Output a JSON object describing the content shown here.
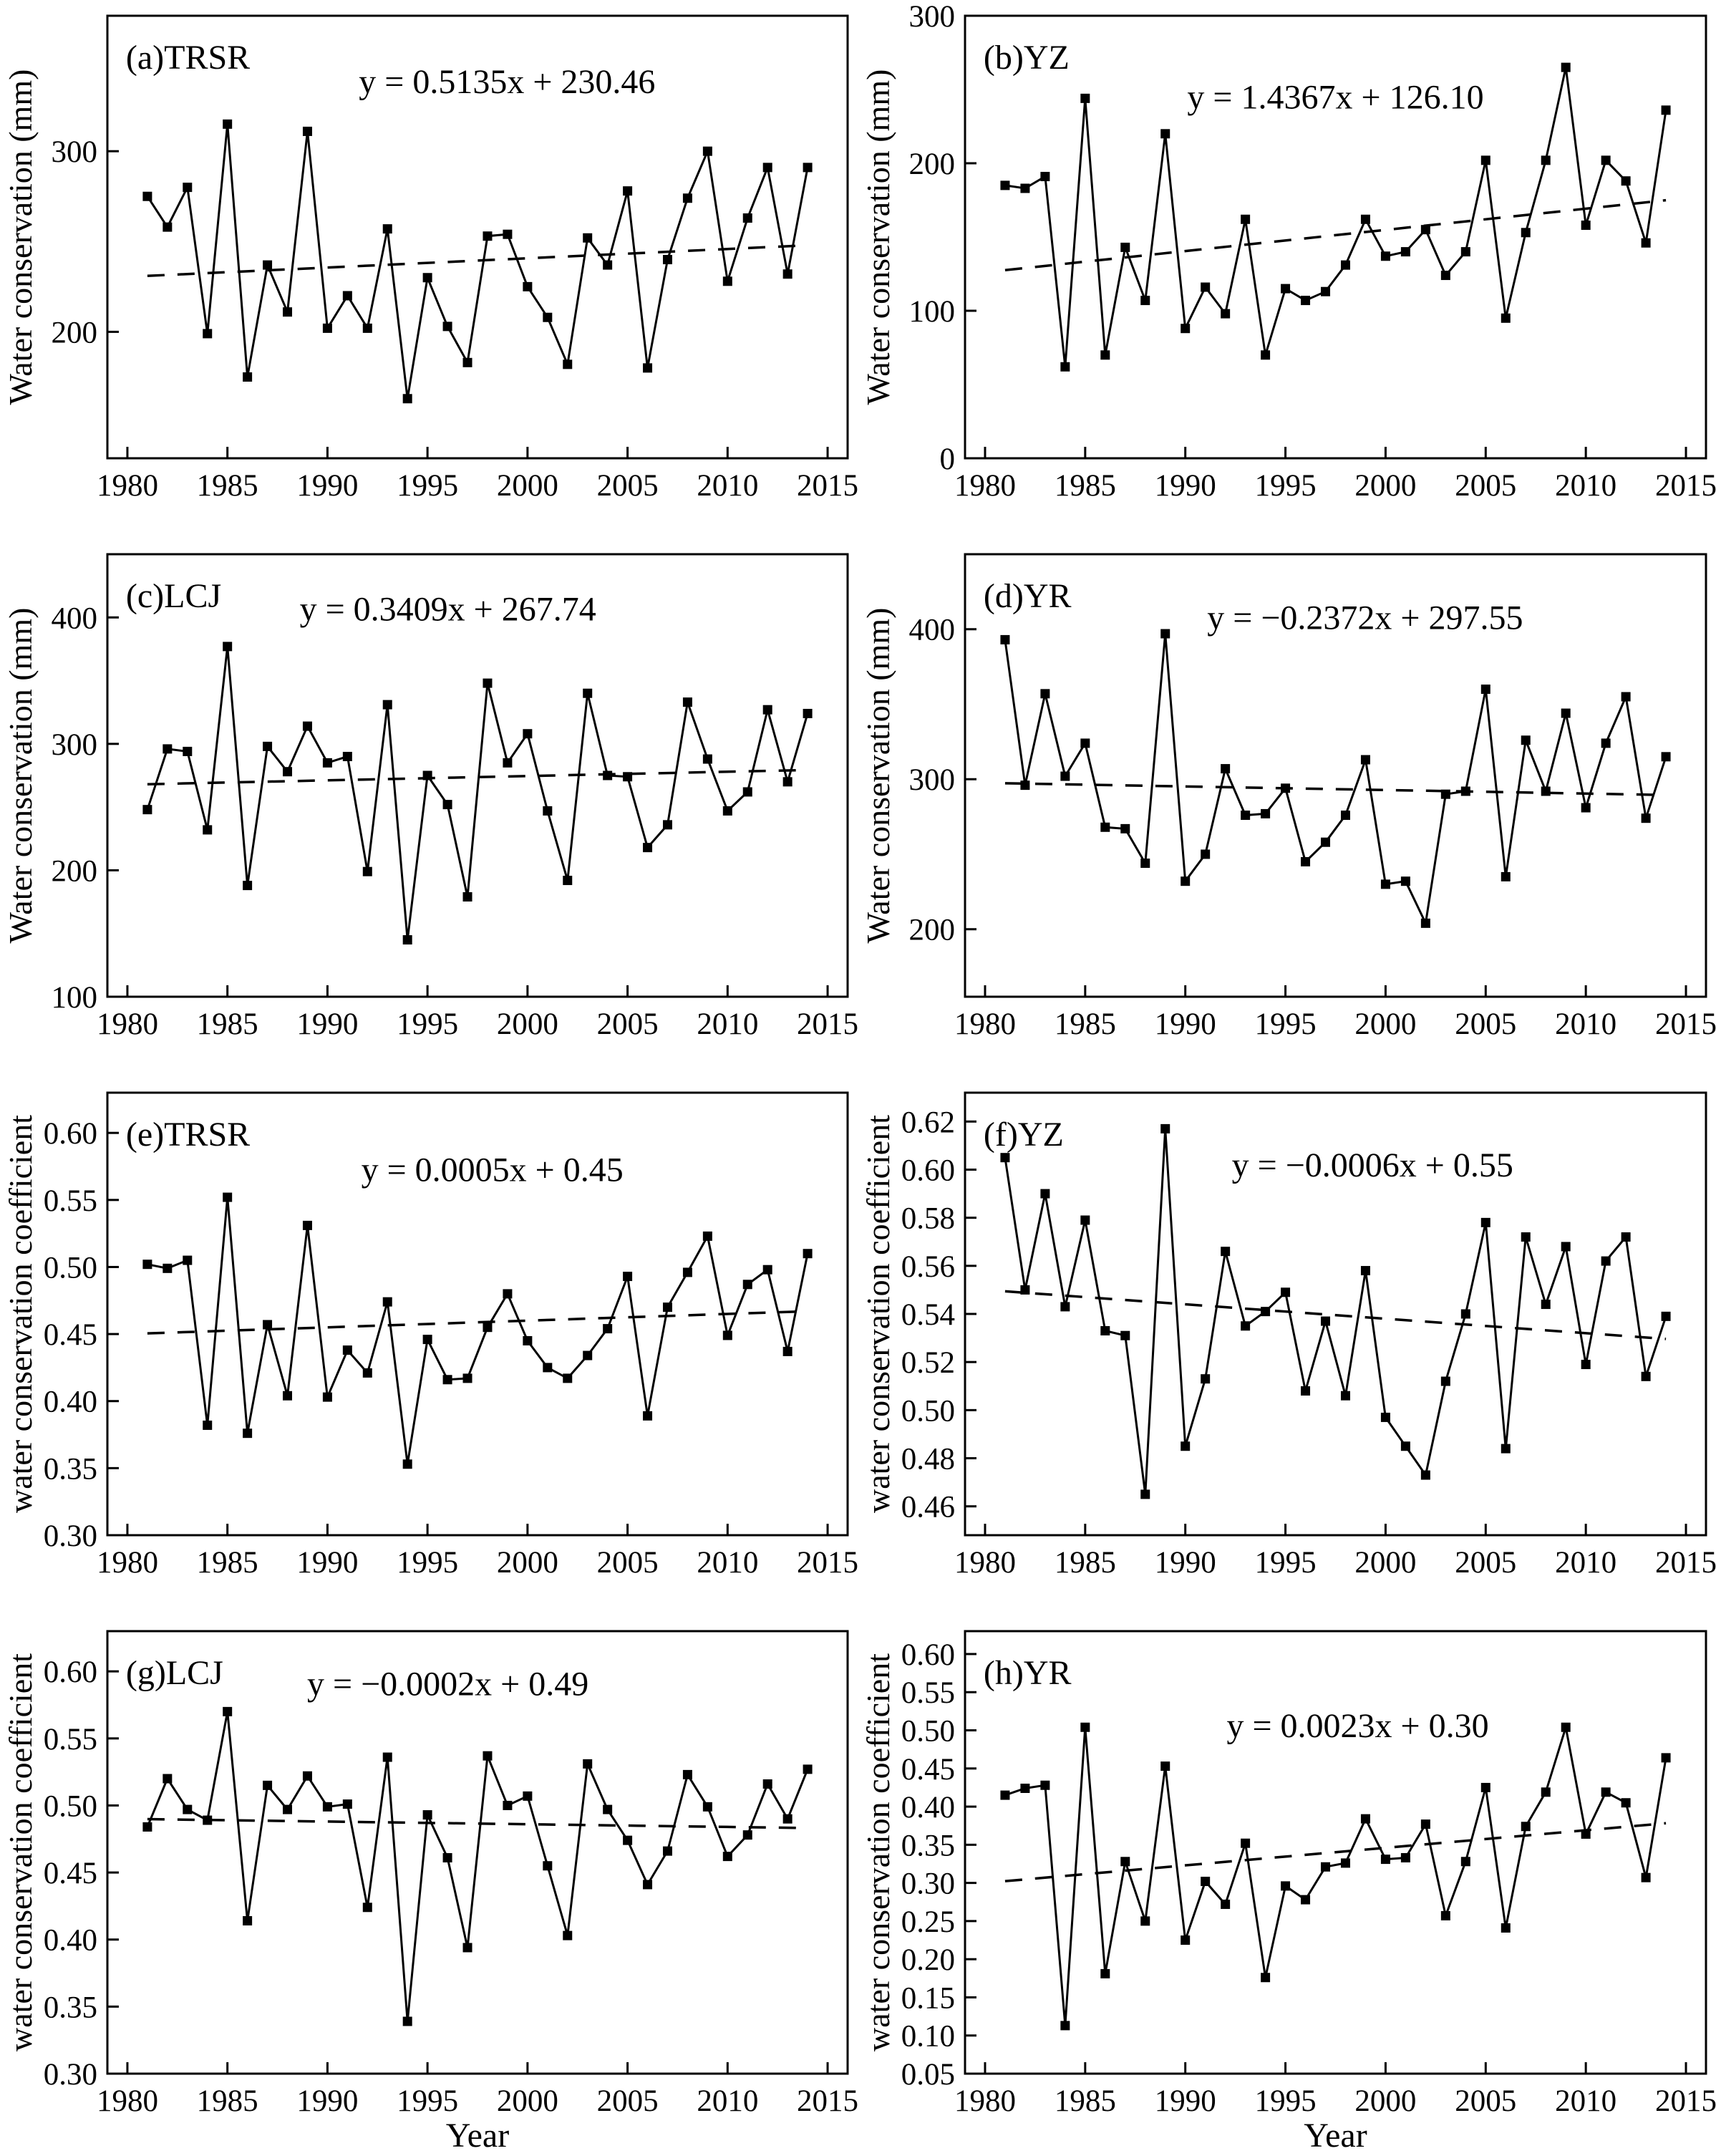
{
  "figure": {
    "xlabel": "Year",
    "background_color": "#ffffff",
    "line_color": "#000000",
    "marker": "filled-square",
    "trend_style": "dashed",
    "grid": "off",
    "legend": "none"
  },
  "chart_data": [
    {
      "type": "line",
      "panel_label": "(a)TRSR",
      "region": "TRSR",
      "ylabel": "Water conservation (mm)",
      "xlabel": "",
      "equation": "y = 0.5135x + 230.46",
      "trend": {
        "slope": 0.5135,
        "intercept": 230.46
      },
      "eq_pos": [
        0.54,
        0.1
      ],
      "xlim": [
        1979,
        2016
      ],
      "ylim": [
        130,
        375
      ],
      "xticks": [
        "1980",
        "1985",
        "1990",
        "1995",
        "2000",
        "2005",
        "2010",
        "2015"
      ],
      "yticks": [
        "200",
        "300"
      ],
      "x": [
        1981,
        1982,
        1983,
        1984,
        1985,
        1986,
        1987,
        1988,
        1989,
        1990,
        1991,
        1992,
        1993,
        1994,
        1995,
        1996,
        1997,
        1998,
        1999,
        2000,
        2001,
        2002,
        2003,
        2004,
        2005,
        2006,
        2007,
        2008,
        2009,
        2010,
        2011,
        2012,
        2013,
        2014
      ],
      "values": [
        275,
        258,
        280,
        199,
        315,
        175,
        237,
        211,
        311,
        202,
        220,
        202,
        257,
        163,
        230,
        203,
        183,
        253,
        254,
        225,
        208,
        182,
        252,
        237,
        278,
        180,
        240,
        274,
        300,
        228,
        263,
        291,
        232,
        291
      ]
    },
    {
      "type": "line",
      "panel_label": "(b)YZ",
      "region": "YZ",
      "ylabel": "Water conservation (mm)",
      "xlabel": "",
      "equation": "y = 1.4367x + 126.10",
      "trend": {
        "slope": 1.4367,
        "intercept": 126.1
      },
      "eq_pos": [
        0.5,
        0.135
      ],
      "xlim": [
        1979,
        2016
      ],
      "ylim": [
        0,
        300
      ],
      "xticks": [
        "1980",
        "1985",
        "1990",
        "1995",
        "2000",
        "2005",
        "2010",
        "2015"
      ],
      "yticks": [
        "0",
        "100",
        "200",
        "300"
      ],
      "x": [
        1981,
        1982,
        1983,
        1984,
        1985,
        1986,
        1987,
        1988,
        1989,
        1990,
        1991,
        1992,
        1993,
        1994,
        1995,
        1996,
        1997,
        1998,
        1999,
        2000,
        2001,
        2002,
        2003,
        2004,
        2005,
        2006,
        2007,
        2008,
        2009,
        2010,
        2011,
        2012,
        2013,
        2014
      ],
      "values": [
        185,
        183,
        191,
        62,
        244,
        70,
        143,
        107,
        220,
        88,
        116,
        98,
        162,
        70,
        115,
        107,
        113,
        131,
        162,
        137,
        140,
        155,
        124,
        140,
        202,
        95,
        153,
        202,
        265,
        158,
        202,
        188,
        146,
        236
      ]
    },
    {
      "type": "line",
      "panel_label": "(c)LCJ",
      "region": "LCJ",
      "ylabel": "Water conservation (mm)",
      "xlabel": "",
      "equation": "y = 0.3409x + 267.74",
      "trend": {
        "slope": 0.3409,
        "intercept": 267.74
      },
      "eq_pos": [
        0.46,
        0.075
      ],
      "xlim": [
        1979,
        2016
      ],
      "ylim": [
        100,
        450
      ],
      "xticks": [
        "1980",
        "1985",
        "1990",
        "1995",
        "2000",
        "2005",
        "2010",
        "2015"
      ],
      "yticks": [
        "100",
        "200",
        "300",
        "400"
      ],
      "x": [
        1981,
        1982,
        1983,
        1984,
        1985,
        1986,
        1987,
        1988,
        1989,
        1990,
        1991,
        1992,
        1993,
        1994,
        1995,
        1996,
        1997,
        1998,
        1999,
        2000,
        2001,
        2002,
        2003,
        2004,
        2005,
        2006,
        2007,
        2008,
        2009,
        2010,
        2011,
        2012,
        2013,
        2014
      ],
      "values": [
        248,
        296,
        294,
        232,
        377,
        188,
        298,
        278,
        314,
        285,
        290,
        199,
        331,
        145,
        275,
        252,
        179,
        348,
        285,
        308,
        247,
        192,
        340,
        275,
        274,
        218,
        236,
        333,
        288,
        247,
        262,
        327,
        270,
        324
      ]
    },
    {
      "type": "line",
      "panel_label": "(d)YR",
      "region": "YR",
      "ylabel": "Water conservation (mm)",
      "xlabel": "",
      "equation": "y = −0.2372x + 297.55",
      "trend": {
        "slope": -0.2372,
        "intercept": 297.55
      },
      "eq_pos": [
        0.54,
        0.095
      ],
      "xlim": [
        1979,
        2016
      ],
      "ylim": [
        155,
        450
      ],
      "xticks": [
        "1980",
        "1985",
        "1990",
        "1995",
        "2000",
        "2005",
        "2010",
        "2015"
      ],
      "yticks": [
        "200",
        "300",
        "400"
      ],
      "x": [
        1981,
        1982,
        1983,
        1984,
        1985,
        1986,
        1987,
        1988,
        1989,
        1990,
        1991,
        1992,
        1993,
        1994,
        1995,
        1996,
        1997,
        1998,
        1999,
        2000,
        2001,
        2002,
        2003,
        2004,
        2005,
        2006,
        2007,
        2008,
        2009,
        2010,
        2011,
        2012,
        2013,
        2014
      ],
      "values": [
        393,
        296,
        357,
        302,
        324,
        268,
        267,
        244,
        397,
        232,
        250,
        307,
        276,
        277,
        294,
        245,
        258,
        276,
        313,
        230,
        232,
        204,
        290,
        292,
        360,
        235,
        326,
        292,
        344,
        281,
        324,
        355,
        274,
        315
      ]
    },
    {
      "type": "line",
      "panel_label": "(e)TRSR",
      "region": "TRSR",
      "ylabel": "water conservation coefficient",
      "xlabel": "",
      "equation": "y = 0.0005x + 0.45",
      "trend": {
        "slope": 0.0005,
        "intercept": 0.45
      },
      "eq_pos": [
        0.52,
        0.125
      ],
      "xlim": [
        1979,
        2016
      ],
      "ylim": [
        0.3,
        0.63
      ],
      "xticks": [
        "1980",
        "1985",
        "1990",
        "1995",
        "2000",
        "2005",
        "2010",
        "2015"
      ],
      "yticks": [
        "0.30",
        "0.35",
        "0.40",
        "0.45",
        "0.50",
        "0.55",
        "0.60"
      ],
      "x": [
        1981,
        1982,
        1983,
        1984,
        1985,
        1986,
        1987,
        1988,
        1989,
        1990,
        1991,
        1992,
        1993,
        1994,
        1995,
        1996,
        1997,
        1998,
        1999,
        2000,
        2001,
        2002,
        2003,
        2004,
        2005,
        2006,
        2007,
        2008,
        2009,
        2010,
        2011,
        2012,
        2013,
        2014
      ],
      "values": [
        0.502,
        0.499,
        0.505,
        0.382,
        0.552,
        0.376,
        0.457,
        0.404,
        0.531,
        0.403,
        0.438,
        0.421,
        0.474,
        0.353,
        0.446,
        0.416,
        0.417,
        0.455,
        0.48,
        0.445,
        0.425,
        0.417,
        0.434,
        0.454,
        0.493,
        0.389,
        0.47,
        0.496,
        0.523,
        0.449,
        0.487,
        0.498,
        0.437,
        0.51
      ]
    },
    {
      "type": "line",
      "panel_label": "(f)YZ",
      "region": "YZ",
      "ylabel": "water conservation coefficient",
      "xlabel": "",
      "equation": "y = −0.0006x + 0.55",
      "trend": {
        "slope": -0.0006,
        "intercept": 0.55
      },
      "eq_pos": [
        0.55,
        0.115
      ],
      "xlim": [
        1979,
        2016
      ],
      "ylim": [
        0.448,
        0.632
      ],
      "xticks": [
        "1980",
        "1985",
        "1990",
        "1995",
        "2000",
        "2005",
        "2010",
        "2015"
      ],
      "yticks": [
        "0.46",
        "0.48",
        "0.50",
        "0.52",
        "0.54",
        "0.56",
        "0.58",
        "0.60",
        "0.62"
      ],
      "x": [
        1981,
        1982,
        1983,
        1984,
        1985,
        1986,
        1987,
        1988,
        1989,
        1990,
        1991,
        1992,
        1993,
        1994,
        1995,
        1996,
        1997,
        1998,
        1999,
        2000,
        2001,
        2002,
        2003,
        2004,
        2005,
        2006,
        2007,
        2008,
        2009,
        2010,
        2011,
        2012,
        2013,
        2014
      ],
      "values": [
        0.605,
        0.55,
        0.59,
        0.543,
        0.579,
        0.533,
        0.531,
        0.465,
        0.617,
        0.485,
        0.513,
        0.566,
        0.535,
        0.541,
        0.549,
        0.508,
        0.537,
        0.506,
        0.558,
        0.497,
        0.485,
        0.473,
        0.512,
        0.54,
        0.578,
        0.484,
        0.572,
        0.544,
        0.568,
        0.519,
        0.562,
        0.572,
        0.514,
        0.539
      ]
    },
    {
      "type": "line",
      "panel_label": "(g)LCJ",
      "region": "LCJ",
      "ylabel": "water conservation coefficient",
      "xlabel": "Year",
      "equation": "y = −0.0002x + 0.49",
      "trend": {
        "slope": -0.0002,
        "intercept": 0.49
      },
      "eq_pos": [
        0.46,
        0.07
      ],
      "xlim": [
        1979,
        2016
      ],
      "ylim": [
        0.3,
        0.63
      ],
      "xticks": [
        "1980",
        "1985",
        "1990",
        "1995",
        "2000",
        "2005",
        "2010",
        "2015"
      ],
      "yticks": [
        "0.30",
        "0.35",
        "0.40",
        "0.45",
        "0.50",
        "0.55",
        "0.60"
      ],
      "x": [
        1981,
        1982,
        1983,
        1984,
        1985,
        1986,
        1987,
        1988,
        1989,
        1990,
        1991,
        1992,
        1993,
        1994,
        1995,
        1996,
        1997,
        1998,
        1999,
        2000,
        2001,
        2002,
        2003,
        2004,
        2005,
        2006,
        2007,
        2008,
        2009,
        2010,
        2011,
        2012,
        2013,
        2014
      ],
      "values": [
        0.484,
        0.52,
        0.497,
        0.489,
        0.57,
        0.414,
        0.515,
        0.497,
        0.522,
        0.499,
        0.501,
        0.424,
        0.536,
        0.339,
        0.493,
        0.461,
        0.394,
        0.537,
        0.5,
        0.507,
        0.455,
        0.403,
        0.531,
        0.497,
        0.474,
        0.441,
        0.466,
        0.523,
        0.499,
        0.462,
        0.478,
        0.516,
        0.49,
        0.527
      ]
    },
    {
      "type": "line",
      "panel_label": "(h)YR",
      "region": "YR",
      "ylabel": "water conservation coefficient",
      "xlabel": "Year",
      "equation": "y = 0.0023x + 0.30",
      "trend": {
        "slope": 0.0023,
        "intercept": 0.3
      },
      "eq_pos": [
        0.53,
        0.165
      ],
      "xlim": [
        1979,
        2016
      ],
      "ylim": [
        0.05,
        0.63
      ],
      "xticks": [
        "1980",
        "1985",
        "1990",
        "1995",
        "2000",
        "2005",
        "2010",
        "2015"
      ],
      "yticks": [
        "0.05",
        "0.10",
        "0.15",
        "0.20",
        "0.25",
        "0.30",
        "0.35",
        "0.40",
        "0.45",
        "0.50",
        "0.55",
        "0.60"
      ],
      "x": [
        1981,
        1982,
        1983,
        1984,
        1985,
        1986,
        1987,
        1988,
        1989,
        1990,
        1991,
        1992,
        1993,
        1994,
        1995,
        1996,
        1997,
        1998,
        1999,
        2000,
        2001,
        2002,
        2003,
        2004,
        2005,
        2006,
        2007,
        2008,
        2009,
        2010,
        2011,
        2012,
        2013,
        2014
      ],
      "values": [
        0.415,
        0.424,
        0.428,
        0.113,
        0.504,
        0.181,
        0.328,
        0.25,
        0.453,
        0.225,
        0.302,
        0.272,
        0.352,
        0.176,
        0.296,
        0.278,
        0.321,
        0.326,
        0.384,
        0.331,
        0.333,
        0.377,
        0.257,
        0.328,
        0.425,
        0.241,
        0.374,
        0.419,
        0.504,
        0.364,
        0.419,
        0.405,
        0.307,
        0.464
      ]
    }
  ]
}
